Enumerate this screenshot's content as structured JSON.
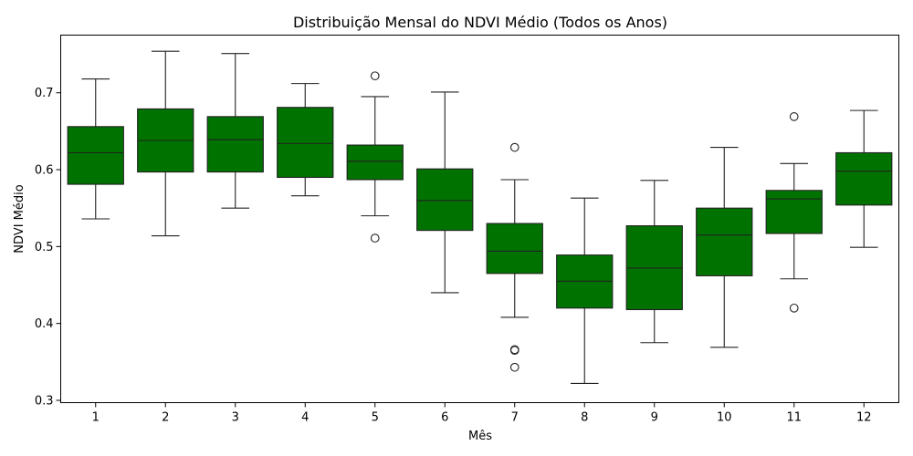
{
  "chart_data": {
    "type": "boxplot",
    "title": "Distribuição Mensal do NDVI Médio (Todos os Anos)",
    "xlabel": "Mês",
    "ylabel": "NDVI Médio",
    "ylim": [
      0.297,
      0.775
    ],
    "yticks": [
      0.3,
      0.4,
      0.5,
      0.6,
      0.7
    ],
    "grid": false,
    "box_color": "#007200",
    "categories": [
      "1",
      "2",
      "3",
      "4",
      "5",
      "6",
      "7",
      "8",
      "9",
      "10",
      "11",
      "12"
    ],
    "boxes": [
      {
        "whislo": 0.536,
        "q1": 0.581,
        "med": 0.622,
        "q3": 0.656,
        "whishi": 0.718,
        "fliers": []
      },
      {
        "whislo": 0.514,
        "q1": 0.597,
        "med": 0.638,
        "q3": 0.679,
        "whishi": 0.754,
        "fliers": []
      },
      {
        "whislo": 0.55,
        "q1": 0.597,
        "med": 0.639,
        "q3": 0.669,
        "whishi": 0.751,
        "fliers": []
      },
      {
        "whislo": 0.566,
        "q1": 0.59,
        "med": 0.634,
        "q3": 0.681,
        "whishi": 0.712,
        "fliers": []
      },
      {
        "whislo": 0.54,
        "q1": 0.587,
        "med": 0.611,
        "q3": 0.632,
        "whishi": 0.695,
        "fliers": [
          0.722,
          0.511
        ]
      },
      {
        "whislo": 0.44,
        "q1": 0.521,
        "med": 0.56,
        "q3": 0.601,
        "whishi": 0.701,
        "fliers": []
      },
      {
        "whislo": 0.408,
        "q1": 0.465,
        "med": 0.494,
        "q3": 0.53,
        "whishi": 0.587,
        "fliers": [
          0.629,
          0.366,
          0.365,
          0.343
        ]
      },
      {
        "whislo": 0.322,
        "q1": 0.42,
        "med": 0.455,
        "q3": 0.489,
        "whishi": 0.563,
        "fliers": []
      },
      {
        "whislo": 0.375,
        "q1": 0.418,
        "med": 0.472,
        "q3": 0.527,
        "whishi": 0.586,
        "fliers": []
      },
      {
        "whislo": 0.369,
        "q1": 0.462,
        "med": 0.515,
        "q3": 0.55,
        "whishi": 0.629,
        "fliers": []
      },
      {
        "whislo": 0.458,
        "q1": 0.517,
        "med": 0.562,
        "q3": 0.573,
        "whishi": 0.608,
        "fliers": [
          0.669,
          0.42
        ]
      },
      {
        "whislo": 0.499,
        "q1": 0.554,
        "med": 0.598,
        "q3": 0.622,
        "whishi": 0.677,
        "fliers": []
      }
    ]
  }
}
